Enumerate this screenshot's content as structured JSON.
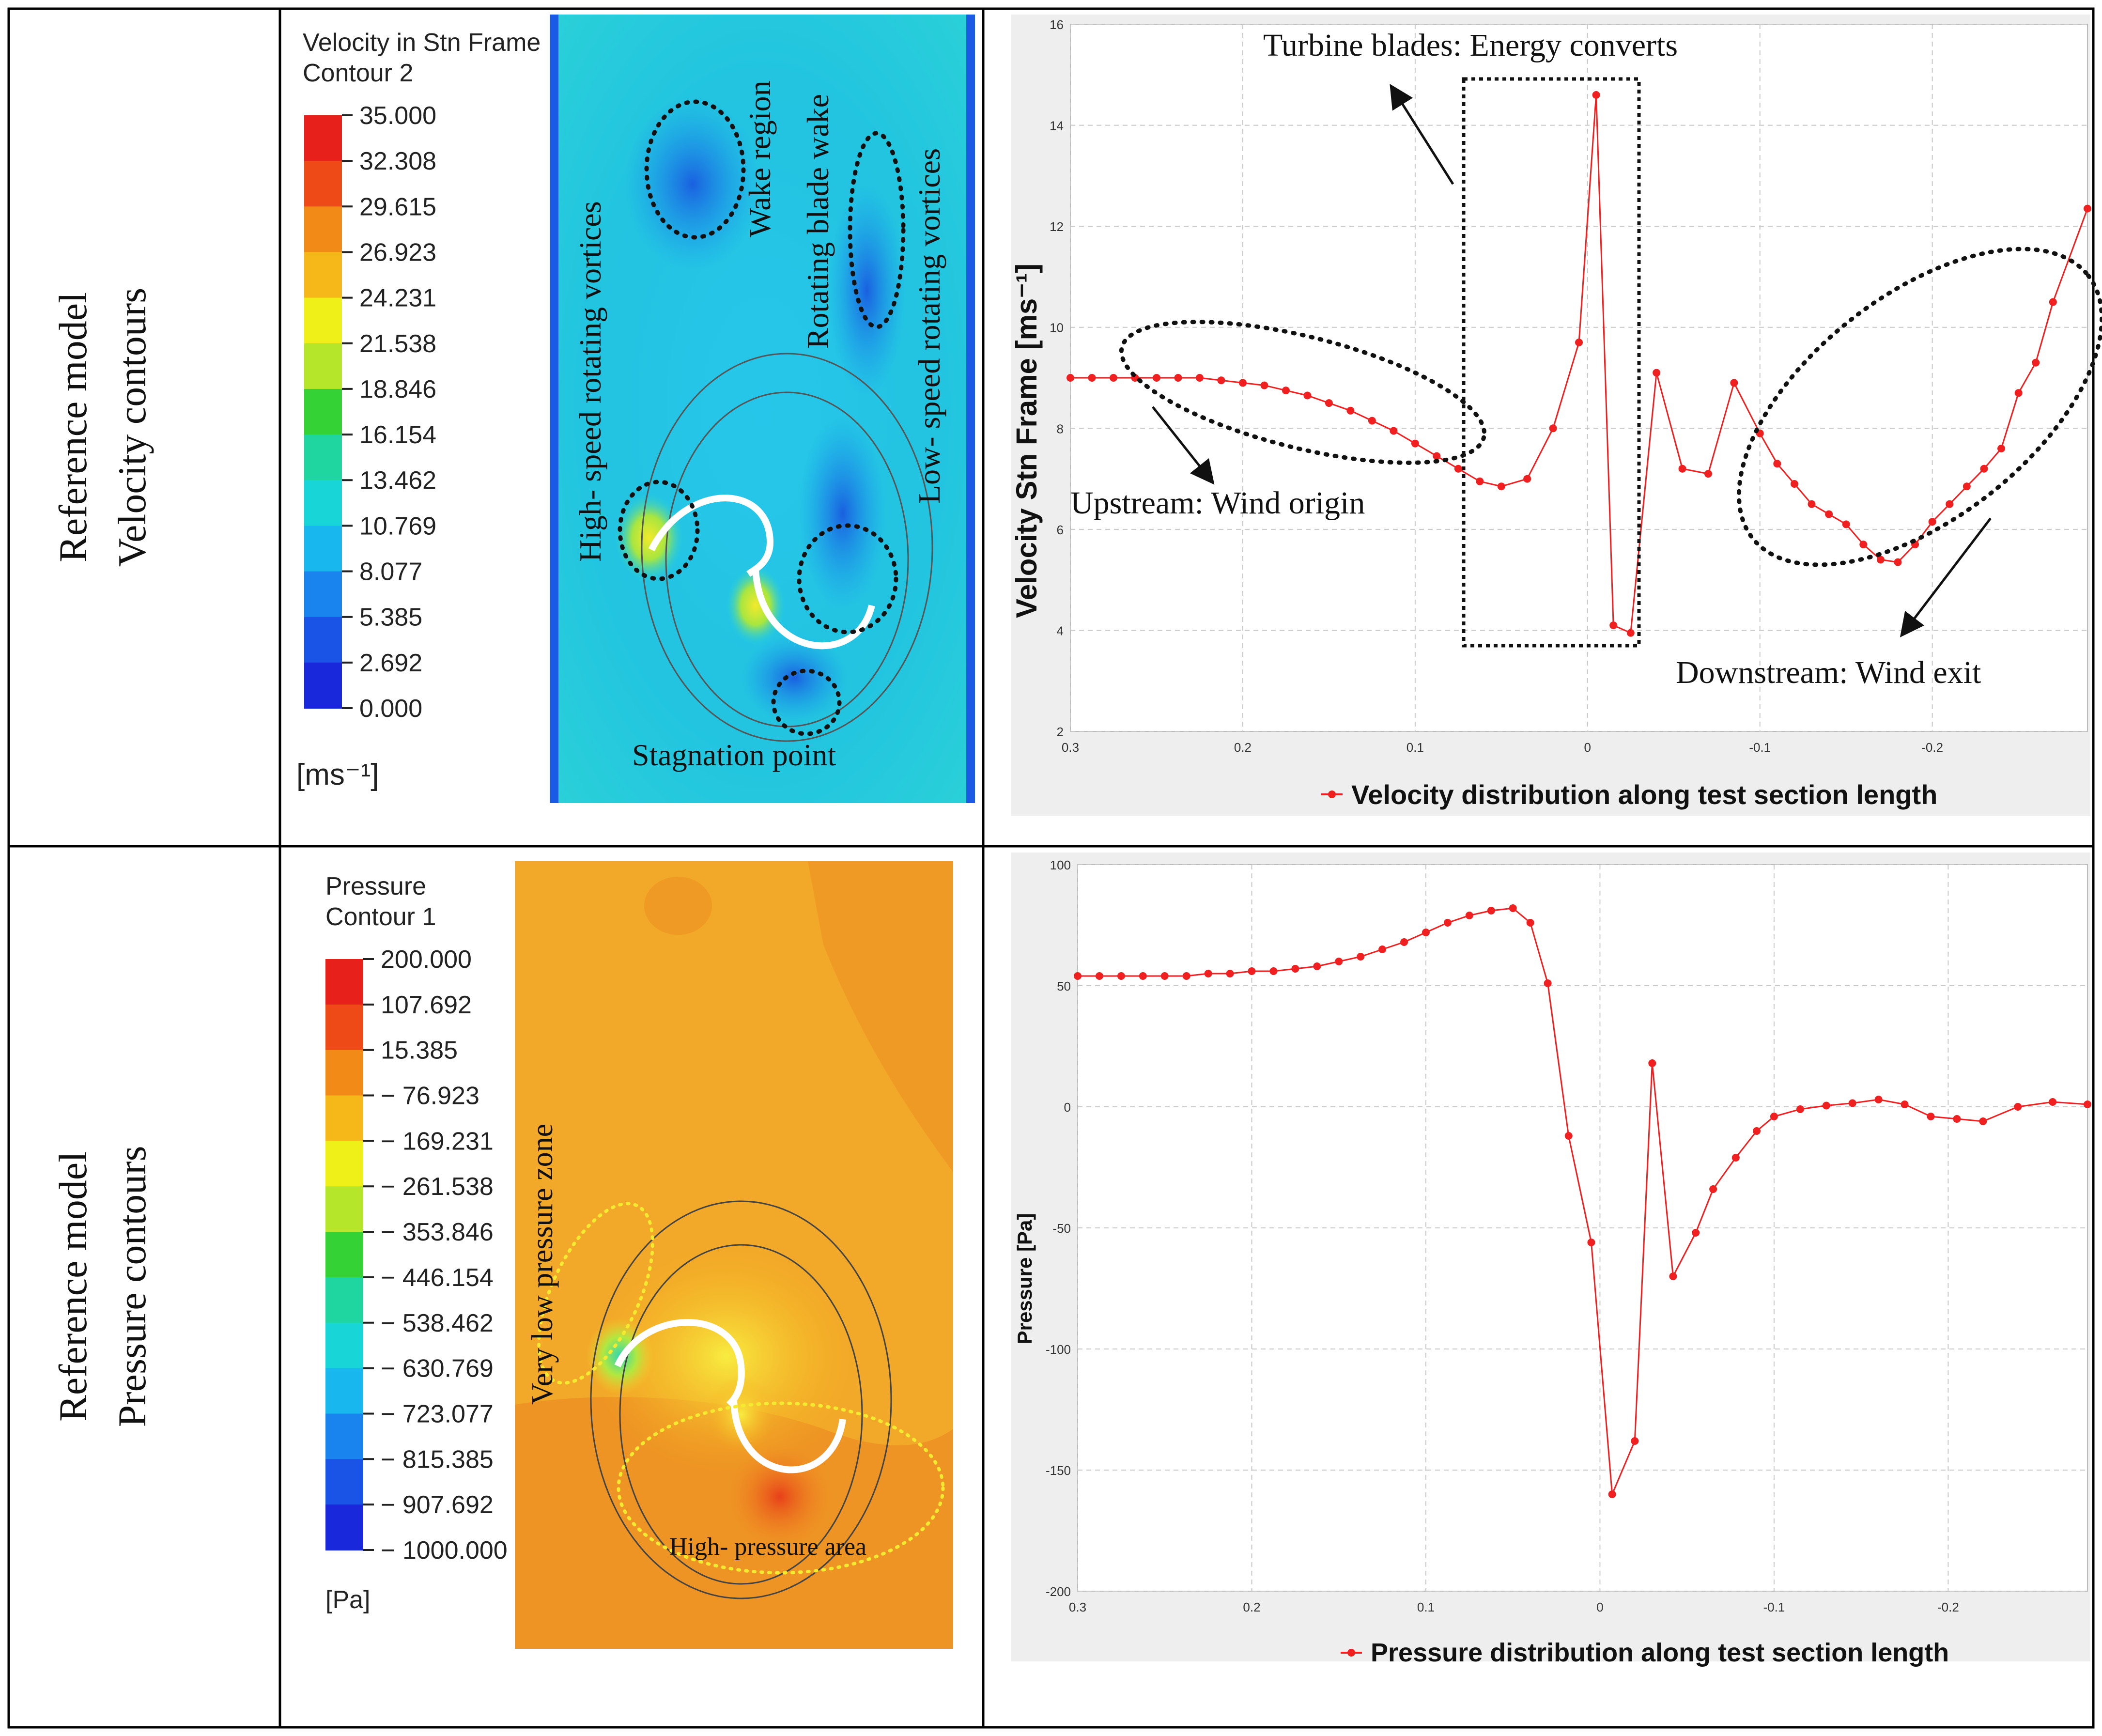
{
  "rows": [
    {
      "label_line1": "Reference model",
      "label_line2": "Velocity contours"
    },
    {
      "label_line1": "Reference model",
      "label_line2": "Pressure contours"
    }
  ],
  "velocity_legend": {
    "title_line1": "Velocity in Stn Frame",
    "title_line2": "Contour 2",
    "ticks": [
      "35.000",
      "32.308",
      "29.615",
      "26.923",
      "24.231",
      "21.538",
      "18.846",
      "16.154",
      "13.462",
      "10.769",
      "8.077",
      "5.385",
      "2.692",
      "0.000"
    ],
    "unit": "[ms⁻¹]",
    "colors": [
      "#e8201c",
      "#ee4a18",
      "#f28a18",
      "#f6b818",
      "#eef018",
      "#b6e62a",
      "#34d234",
      "#20d6a0",
      "#18d6d8",
      "#18b8ee",
      "#1a84ee",
      "#1a54e6",
      "#1a28dc"
    ]
  },
  "pressure_legend": {
    "title_line1": "Pressure",
    "title_line2": "Contour 1",
    "ticks": [
      "200.000",
      "107.692",
      "15.385",
      "− 76.923",
      "− 169.231",
      "− 261.538",
      "− 353.846",
      "− 446.154",
      "− 538.462",
      "− 630.769",
      "− 723.077",
      "− 815.385",
      "− 907.692",
      "− 1000.000"
    ],
    "unit": "[Pa]",
    "colors": [
      "#e8201c",
      "#ee4a18",
      "#f28a18",
      "#f6b818",
      "#eef018",
      "#b6e62a",
      "#34d234",
      "#20d6a0",
      "#18d6d8",
      "#18b8ee",
      "#1a84ee",
      "#1a54e6",
      "#1a28dc"
    ]
  },
  "velocity_contour_annotations": {
    "high_speed": "High- speed rotating vortices",
    "wake": "Wake region",
    "blade_wake": "Rotating blade wake",
    "low_speed": "Low- speed rotating vortices",
    "stagnation": "Stagnation point"
  },
  "pressure_contour_annotations": {
    "low_zone": "Very low pressure zone",
    "high_area": "High- pressure area"
  },
  "velocity_chart_annotations": {
    "turbine": "Turbine blades: Energy converts",
    "upstream": "Upstream: Wind origin",
    "downstream": "Downstream: Wind exit"
  },
  "chart_data": [
    {
      "type": "line",
      "title": "Velocity distribution along test section length",
      "xlabel": "",
      "ylabel": "Velocity Stn Frame [ms⁻¹]",
      "xlim": [
        0.3,
        -0.29
      ],
      "ylim": [
        2,
        16
      ],
      "xticks": [
        "0.3",
        "0.2",
        "0.1",
        "0",
        "-0.1",
        "-0.2"
      ],
      "xtick_values": [
        0.3,
        0.2,
        0.1,
        0,
        -0.1,
        -0.2
      ],
      "yticks": [
        "2",
        "4",
        "6",
        "8",
        "10",
        "12",
        "14",
        "16"
      ],
      "ytick_values": [
        2,
        4,
        6,
        8,
        10,
        12,
        14,
        16
      ],
      "legend": "Velocity distribution along test section length",
      "series": [
        {
          "name": "Velocity distribution along test section length",
          "color": "#f02020",
          "x": [
            0.3,
            0.2875,
            0.275,
            0.2625,
            0.25,
            0.2375,
            0.225,
            0.2125,
            0.2,
            0.1875,
            0.175,
            0.1625,
            0.15,
            0.1375,
            0.125,
            0.1125,
            0.1,
            0.0875,
            0.075,
            0.0625,
            0.05,
            0.035,
            0.02,
            0.005,
            -0.005,
            -0.015,
            -0.025,
            -0.04,
            -0.055,
            -0.07,
            -0.085,
            -0.1,
            -0.11,
            -0.12,
            -0.13,
            -0.14,
            -0.15,
            -0.16,
            -0.17,
            -0.18,
            -0.19,
            -0.2,
            -0.21,
            -0.22,
            -0.23,
            -0.24,
            -0.25,
            -0.26,
            -0.27,
            -0.29
          ],
          "y": [
            9.0,
            9.0,
            9.0,
            9.0,
            9.0,
            9.0,
            9.0,
            8.95,
            8.9,
            8.85,
            8.75,
            8.65,
            8.5,
            8.35,
            8.15,
            7.95,
            7.7,
            7.45,
            7.2,
            6.95,
            6.85,
            7.0,
            8.0,
            9.7,
            14.6,
            4.1,
            3.95,
            9.1,
            7.2,
            7.1,
            8.9,
            7.9,
            7.3,
            6.9,
            6.5,
            6.3,
            6.1,
            5.7,
            5.4,
            5.35,
            5.7,
            6.15,
            6.5,
            6.85,
            7.2,
            7.6,
            8.7,
            9.3,
            10.5,
            12.35
          ]
        }
      ]
    },
    {
      "type": "line",
      "title": "Pressure distribution along test section length",
      "xlabel": "",
      "ylabel": "Pressure [Pa]",
      "xlim": [
        0.3,
        -0.28
      ],
      "ylim": [
        -200,
        100
      ],
      "xticks": [
        "0.3",
        "0.2",
        "0.1",
        "0",
        "-0.1",
        "-0.2"
      ],
      "xtick_values": [
        0.3,
        0.2,
        0.1,
        0,
        -0.1,
        -0.2
      ],
      "yticks": [
        "-200",
        "-150",
        "-100",
        "-50",
        "0",
        "50",
        "100"
      ],
      "ytick_values": [
        -200,
        -150,
        -100,
        -50,
        0,
        50,
        100
      ],
      "legend": "Pressure distribution along test section length",
      "series": [
        {
          "name": "Pressure distribution along test section length",
          "color": "#f02020",
          "x": [
            0.3,
            0.2875,
            0.275,
            0.2625,
            0.25,
            0.2375,
            0.225,
            0.2125,
            0.2,
            0.1875,
            0.175,
            0.1625,
            0.15,
            0.1375,
            0.125,
            0.1125,
            0.1,
            0.0875,
            0.075,
            0.0625,
            0.05,
            0.04,
            0.03,
            0.018,
            0.005,
            -0.007,
            -0.02,
            -0.03,
            -0.042,
            -0.055,
            -0.065,
            -0.078,
            -0.09,
            -0.1,
            -0.115,
            -0.13,
            -0.145,
            -0.16,
            -0.175,
            -0.19,
            -0.205,
            -0.22,
            -0.24,
            -0.26,
            -0.28
          ],
          "y": [
            54,
            54,
            54,
            54,
            54,
            54,
            55,
            55,
            56,
            56,
            57,
            58,
            60,
            62,
            65,
            68,
            72,
            76,
            79,
            81,
            82,
            76,
            51,
            -12,
            -56,
            -160,
            -138,
            18,
            -70,
            -52,
            -34,
            -21,
            -10,
            -4,
            -1,
            0.5,
            1.5,
            3,
            1,
            -4,
            -5,
            -6,
            0,
            2,
            1
          ]
        }
      ]
    }
  ]
}
